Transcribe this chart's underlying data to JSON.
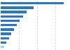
{
  "values": [
    68.5,
    36.0,
    28.0,
    24.5,
    21.0,
    17.5,
    14.5,
    11.5,
    9.0,
    6.5,
    3.5
  ],
  "bar_color": "#2878c8",
  "last_bar_color": "#b0d0f0",
  "background_color": "#ffffff",
  "grid_color": "#c8c8c8",
  "bar_height": 0.55,
  "xlim": [
    0,
    75
  ],
  "n_bars": 11
}
